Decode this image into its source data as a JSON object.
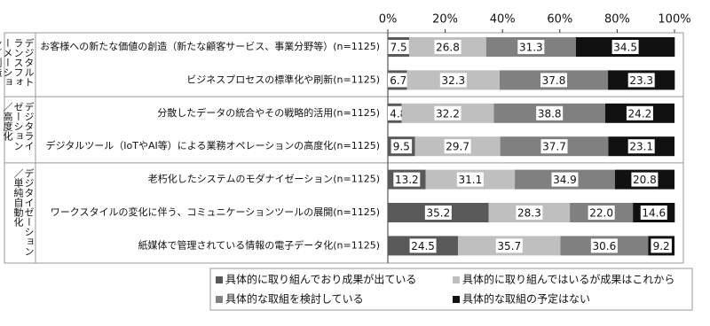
{
  "chart_data": {
    "type": "stacked-bar-horizontal",
    "group_labels": [
      "デジタルトランスフォーメーション／創造・革新",
      "デジタライゼーション／高度化",
      "デジタイゼーション／単純自動化"
    ],
    "categories": [
      "お客様への新たな価値の創造（新たな顧客サービス、事業分野等）(n=1125)",
      "ビジネスプロセスの標準化や刷新(n=1125)",
      "分散したデータの統合やその戦略的活用(n=1125)",
      "デジタルツール（IoTやAI等）による業務オペレーションの高度化(n=1125)",
      "老朽化したシステムのモダナイゼーション(n=1125)",
      "ワークスタイルの変化に伴う、コミュニケーションツールの展開(n=1125)",
      "紙媒体で管理されている情報の電子データ化(n=1125)"
    ],
    "series": [
      {
        "name": "具体的に取り組んでおり成果が出ている",
        "color": "#595959",
        "values": [
          7.5,
          6.7,
          4.8,
          9.5,
          13.2,
          35.2,
          24.5
        ],
        "value_labels": [
          "7.5",
          "6.7",
          "4.8",
          "9.5",
          "13.2",
          "35.2",
          "24.5"
        ]
      },
      {
        "name": "具体的に取り組んではいるが成果はこれから",
        "color": "#bfbfbf",
        "values": [
          26.8,
          32.3,
          32.2,
          29.7,
          31.1,
          28.3,
          35.7
        ],
        "value_labels": [
          "26.8",
          "32.3",
          "32.2",
          "29.7",
          "31.1",
          "28.3",
          "35.7"
        ]
      },
      {
        "name": "具体的な取組を検討している",
        "color": "#808080",
        "values": [
          31.3,
          37.8,
          38.8,
          37.7,
          34.9,
          22.0,
          30.6
        ],
        "value_labels": [
          "31.3",
          "37.8",
          "38.8",
          "37.7",
          "34.9",
          "22.0",
          "30.6"
        ]
      },
      {
        "name": "具体的な取組の予定はない",
        "color": "#111111",
        "values": [
          34.5,
          23.3,
          24.2,
          23.1,
          20.8,
          14.6,
          9.2
        ],
        "value_labels": [
          "34.5",
          "23.3",
          "24.2",
          "23.1",
          "20.8",
          "14.6",
          "9.2"
        ]
      }
    ],
    "xlim": [
      0,
      100
    ],
    "xticks": [
      {
        "value": 0,
        "label": "0%"
      },
      {
        "value": 20,
        "label": "20%"
      },
      {
        "value": 40,
        "label": "40%"
      },
      {
        "value": 60,
        "label": "60%"
      },
      {
        "value": 80,
        "label": "80%"
      },
      {
        "value": 100,
        "label": "100%"
      }
    ]
  }
}
